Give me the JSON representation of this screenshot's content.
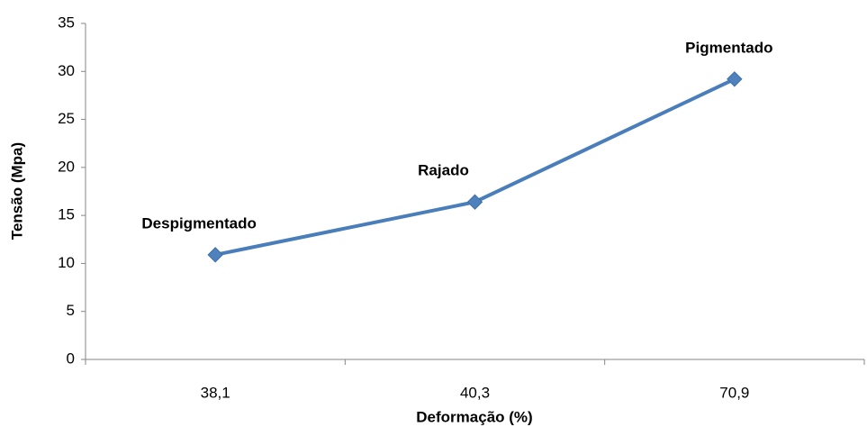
{
  "chart_data": {
    "type": "line",
    "x_label": "Deformação (%)",
    "y_label": "Tensão (Mpa)",
    "categories": [
      "38,1",
      "40,3",
      "70,9"
    ],
    "point_labels": [
      "Despigmentado",
      "Rajado",
      "Pigmentado"
    ],
    "values": [
      10.9,
      16.4,
      29.2
    ],
    "color": "#4a7ebb",
    "ylim": [
      0,
      35
    ],
    "yticks": [
      0,
      5,
      10,
      15,
      20,
      25,
      30,
      35
    ],
    "grid": false
  }
}
